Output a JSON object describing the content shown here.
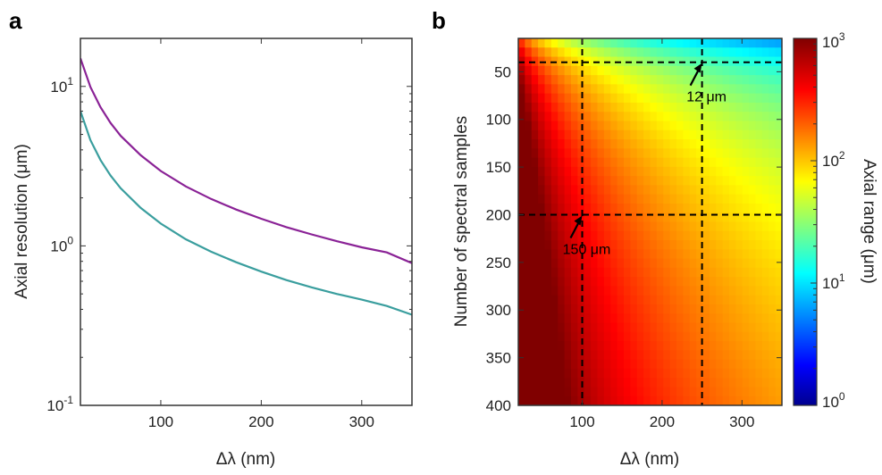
{
  "chart_data": [
    {
      "panel": "a",
      "type": "line",
      "xlabel": "Δλ (nm)",
      "ylabel": "Axial resolution (μm)",
      "xlim": [
        20,
        350
      ],
      "ylim": [
        0.1,
        20
      ],
      "yscale": "log",
      "xticks": [
        "100",
        "200",
        "300"
      ],
      "xtick_values": [
        100,
        200,
        300
      ],
      "ytick_base": [
        "10",
        "10",
        "10"
      ],
      "ytick_exp": [
        "-1",
        "0",
        "1"
      ],
      "ytick_values": [
        0.1,
        1,
        10
      ],
      "grid": false,
      "series": [
        {
          "color": "#8a2296",
          "x": [
            20,
            30,
            40,
            50,
            60,
            80,
            100,
            125,
            150,
            175,
            200,
            225,
            250,
            275,
            300,
            325,
            350
          ],
          "values": [
            15.0,
            9.9,
            7.4,
            5.9,
            4.9,
            3.7,
            2.95,
            2.36,
            1.97,
            1.69,
            1.48,
            1.31,
            1.18,
            1.07,
            0.98,
            0.91,
            0.78
          ]
        },
        {
          "color": "#3a9e9e",
          "x": [
            20,
            30,
            40,
            50,
            60,
            80,
            100,
            125,
            150,
            175,
            200,
            225,
            250,
            275,
            300,
            325,
            350
          ],
          "values": [
            7.0,
            4.6,
            3.45,
            2.76,
            2.3,
            1.73,
            1.38,
            1.1,
            0.92,
            0.79,
            0.69,
            0.61,
            0.55,
            0.5,
            0.46,
            0.42,
            0.37
          ]
        }
      ]
    },
    {
      "panel": "b",
      "type": "heatmap",
      "xlabel": "Δλ (nm)",
      "ylabel": "Number of spectral samples",
      "colorbar_label": "Axial range (μm)",
      "xlim": [
        20,
        350
      ],
      "ylim": [
        15,
        400
      ],
      "y_reversed": true,
      "xticks": [
        "100",
        "200",
        "300"
      ],
      "xtick_values": [
        100,
        200,
        300
      ],
      "yticks": [
        "50",
        "100",
        "150",
        "200",
        "250",
        "300",
        "350",
        "400"
      ],
      "ytick_values": [
        50,
        100,
        150,
        200,
        250,
        300,
        350,
        400
      ],
      "colorbar_range": [
        1,
        1000
      ],
      "colorbar_scale": "log",
      "colorbar_tick_base": [
        "10",
        "10",
        "10",
        "10"
      ],
      "colorbar_tick_exp": [
        "0",
        "1",
        "2",
        "3"
      ],
      "colorbar_tick_values": [
        1,
        10,
        100,
        1000
      ],
      "colormap": "jet",
      "guide_lines": {
        "x": [
          100,
          250
        ],
        "y": [
          40,
          200
        ]
      },
      "annotations": [
        {
          "text": "12 μm",
          "x": 250,
          "y": 40
        },
        {
          "text": "150 μm",
          "x": 100,
          "y": 200
        }
      ]
    }
  ]
}
